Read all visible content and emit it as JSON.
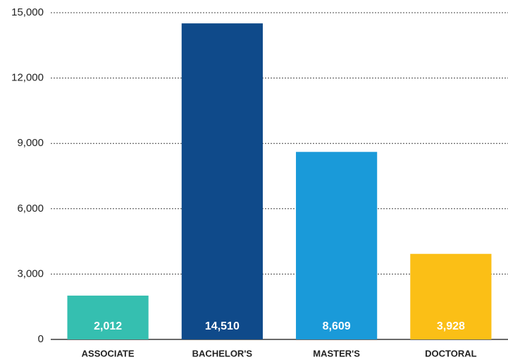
{
  "chart_data": {
    "type": "bar",
    "categories": [
      "ASSOCIATE",
      "BACHELOR'S",
      "MASTER'S",
      "DOCTORAL"
    ],
    "values": [
      2012,
      14510,
      8609,
      3928
    ],
    "value_labels": [
      "2,012",
      "14,510",
      "8,609",
      "3,928"
    ],
    "colors": [
      "#35bfb0",
      "#0f4a8a",
      "#1a9ad9",
      "#fbbf16"
    ],
    "ylim": [
      0,
      15000
    ],
    "yticks": [
      0,
      {
        "value": 3000,
        "label": "3,000"
      },
      {
        "value": 6000,
        "label": "6,000"
      },
      {
        "value": 9000,
        "label": "9,000"
      },
      {
        "value": 12000,
        "label": "12,000"
      },
      {
        "value": 15000,
        "label": "15,000"
      }
    ],
    "grid": true
  }
}
